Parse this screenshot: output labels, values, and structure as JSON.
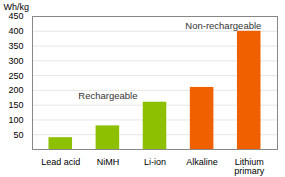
{
  "chart_data": {
    "type": "bar",
    "categories": [
      "Lead acid",
      "NiMH",
      "Li-ion",
      "Alkaline",
      "Lithium\nprimary"
    ],
    "values": [
      40,
      80,
      160,
      210,
      400
    ],
    "colors": [
      "#8dc000",
      "#8dc000",
      "#8dc000",
      "#f06000",
      "#f06000"
    ],
    "ylabel": "Wh/kg",
    "ylim": [
      0,
      450
    ],
    "yticks": [
      50,
      100,
      150,
      200,
      250,
      300,
      350,
      400,
      450
    ],
    "grid": true,
    "annotations": [
      {
        "text": "Rechargeable",
        "x": 1.0,
        "y": 170
      },
      {
        "text": "Non-rechargeable",
        "x": 3.45,
        "y": 408
      }
    ]
  }
}
